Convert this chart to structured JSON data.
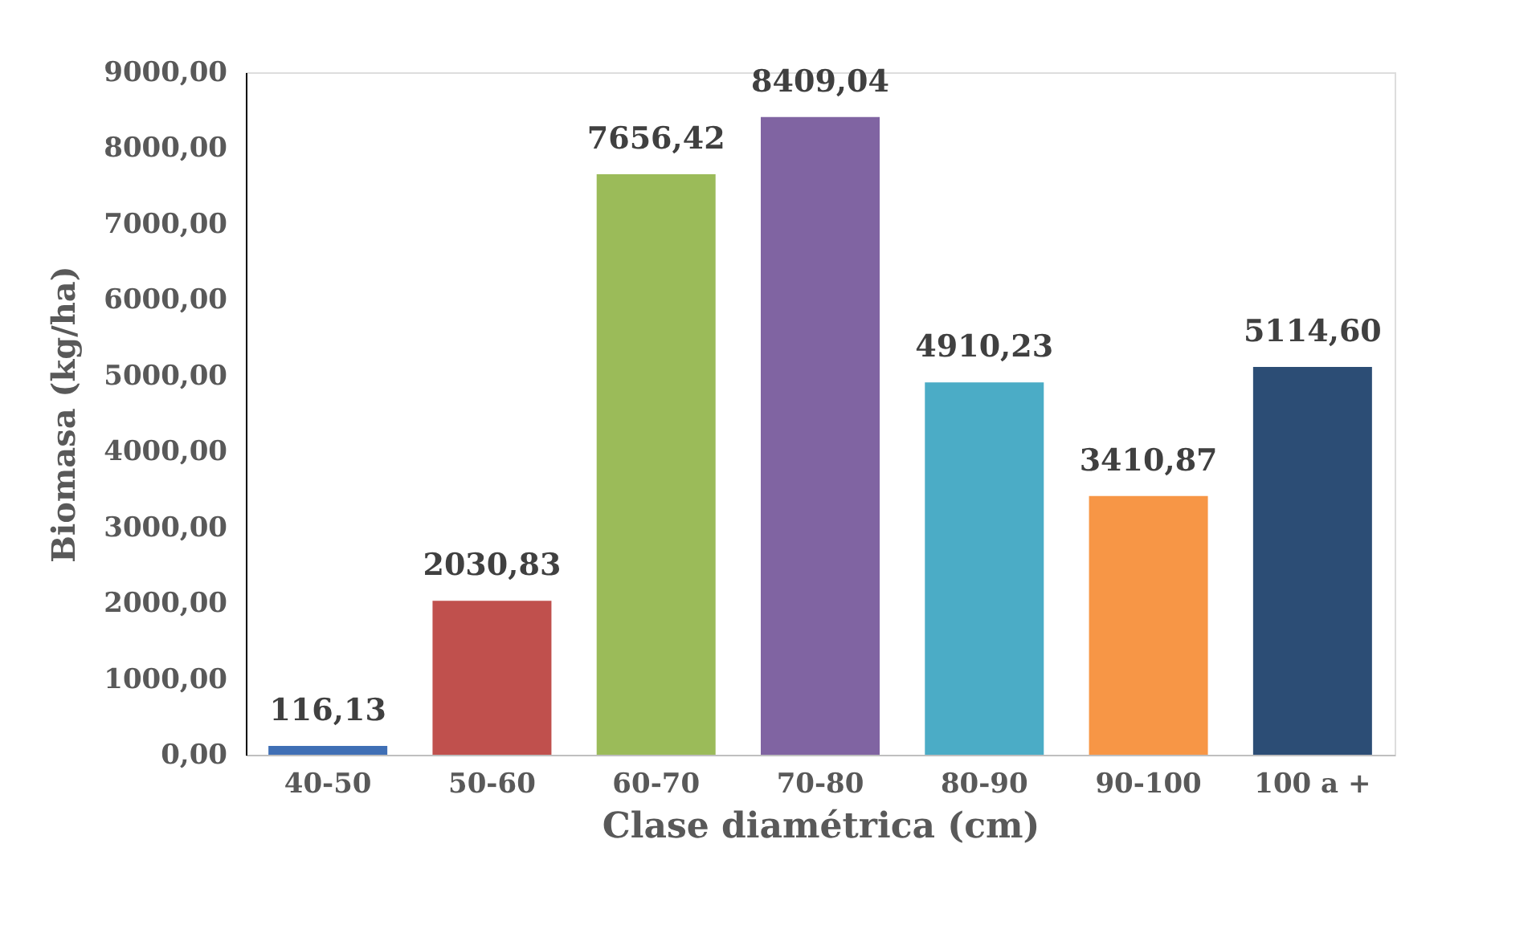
{
  "chart_data": {
    "type": "bar",
    "xlabel": "Clase diamétrica (cm)",
    "ylabel": "Biomasa (kg/ha)",
    "categories": [
      "40-50",
      "50-60",
      "60-70",
      "70-80",
      "80-90",
      "90-100",
      "100 a +"
    ],
    "values": [
      116.13,
      2030.83,
      7656.42,
      8409.04,
      4910.23,
      3410.87,
      5114.6
    ],
    "colors": [
      "#3f6fb5",
      "#c0504d",
      "#9bbb59",
      "#8064a2",
      "#4bacc6",
      "#f79646",
      "#2c4d75"
    ],
    "value_labels": [
      "116,13",
      "2030,83",
      "7656,42",
      "8409,04",
      "4910,23",
      "3410,87",
      "5114,60"
    ],
    "ylim": [
      0,
      9000
    ],
    "yticks": [
      {
        "value": 0,
        "label": "0,00"
      },
      {
        "value": 1000,
        "label": "1000,00"
      },
      {
        "value": 2000,
        "label": "2000,00"
      },
      {
        "value": 3000,
        "label": "3000,00"
      },
      {
        "value": 4000,
        "label": "4000,00"
      },
      {
        "value": 5000,
        "label": "5000,00"
      },
      {
        "value": 6000,
        "label": "6000,00"
      },
      {
        "value": 7000,
        "label": "7000,00"
      },
      {
        "value": 8000,
        "label": "8000,00"
      },
      {
        "value": 9000,
        "label": "9000,00"
      }
    ],
    "grid": false
  }
}
